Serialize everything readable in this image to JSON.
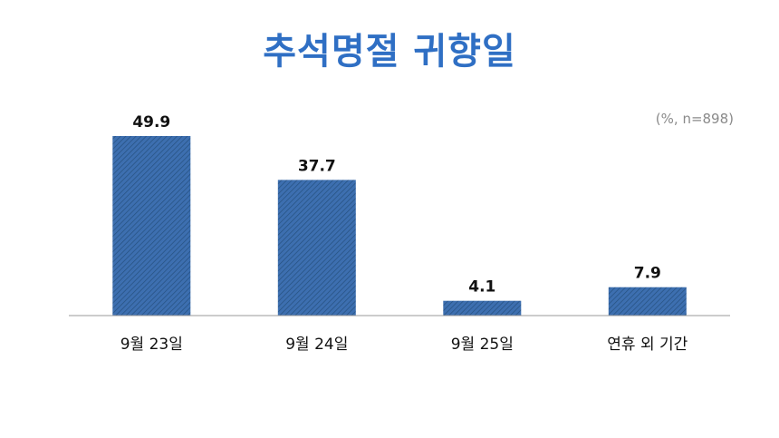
{
  "title": "추석명절 귀향일",
  "note": "(%, n=898)",
  "colors": {
    "title": "#2f6fc4",
    "bar_fill": "#3d6fb0",
    "bar_hatch": "#25507f",
    "axis": "#9a9a9a"
  },
  "chart_data": {
    "type": "bar",
    "categories": [
      "9월 23일",
      "9월 24일",
      "9월 25일",
      "연휴 외 기간"
    ],
    "values": [
      49.9,
      37.7,
      4.1,
      7.9
    ],
    "title": "추석명절 귀향일",
    "subtitle": "(%, n=898)",
    "xlabel": "",
    "ylabel": "",
    "ylim": [
      0,
      50
    ],
    "grid": false,
    "legend": "none",
    "data_labels": true
  }
}
